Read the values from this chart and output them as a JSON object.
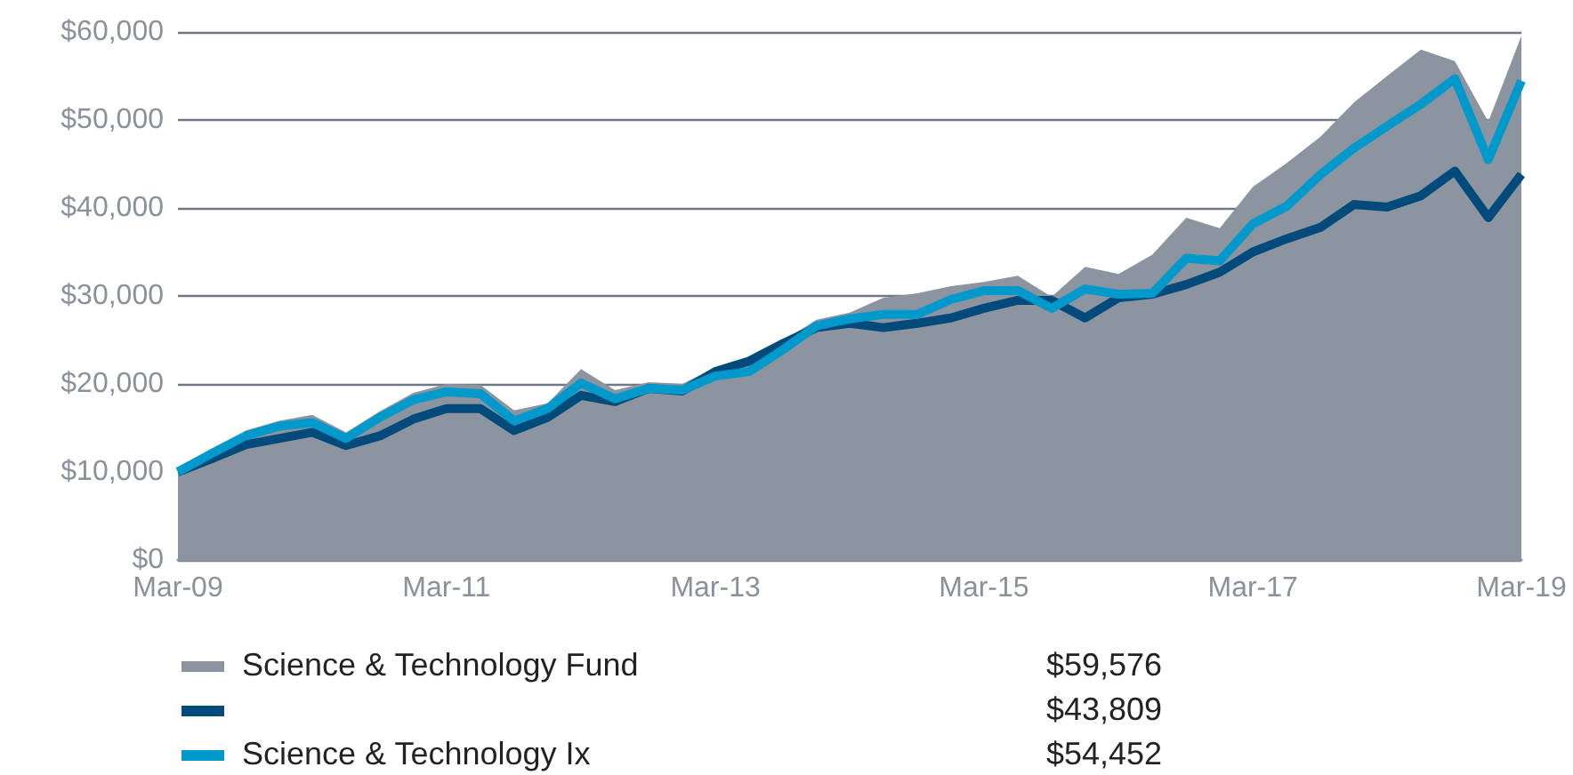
{
  "chart_data": {
    "type": "line",
    "x": [
      "2009-03",
      "2009-06",
      "2009-09",
      "2009-12",
      "2010-03",
      "2010-06",
      "2010-09",
      "2010-12",
      "2011-03",
      "2011-06",
      "2011-09",
      "2011-12",
      "2012-03",
      "2012-06",
      "2012-09",
      "2012-12",
      "2013-03",
      "2013-06",
      "2013-09",
      "2013-12",
      "2014-03",
      "2014-06",
      "2014-09",
      "2014-12",
      "2015-03",
      "2015-06",
      "2015-09",
      "2015-12",
      "2016-03",
      "2016-06",
      "2016-09",
      "2016-12",
      "2017-03",
      "2017-06",
      "2017-09",
      "2017-12",
      "2018-03",
      "2018-06",
      "2018-09",
      "2018-12",
      "2019-03"
    ],
    "series": [
      {
        "name": "Science & Technology Fund",
        "type": "area",
        "color": "#8b949f",
        "values": [
          10000,
          12000,
          14700,
          15800,
          16500,
          14500,
          16900,
          19000,
          20000,
          19900,
          17000,
          17800,
          21700,
          19300,
          20200,
          20000,
          21900,
          22600,
          24900,
          27300,
          28100,
          29800,
          30300,
          31100,
          31600,
          32300,
          29900,
          33300,
          32500,
          34700,
          38900,
          37700,
          42400,
          45100,
          48100,
          52000,
          55000,
          58000,
          56700,
          49800,
          59576
        ]
      },
      {
        "color": "#004a7c",
        "values": [
          10000,
          11500,
          13100,
          13800,
          14500,
          13000,
          14100,
          16000,
          17200,
          17200,
          14700,
          16200,
          18700,
          18000,
          19500,
          19200,
          21400,
          22600,
          24600,
          26400,
          26900,
          26400,
          26900,
          27500,
          28600,
          29500,
          29500,
          27500,
          29800,
          30200,
          31300,
          32700,
          35000,
          36500,
          37800,
          40400,
          40100,
          41400,
          44200,
          38900,
          43809
        ]
      },
      {
        "name": "Science & Technology Ix",
        "color": "#0099cc",
        "values": [
          10000,
          12100,
          14100,
          15200,
          15600,
          13800,
          16200,
          18200,
          19100,
          18900,
          15800,
          17200,
          20100,
          18300,
          19500,
          19300,
          20900,
          21400,
          23900,
          26600,
          27400,
          27900,
          27900,
          29600,
          30600,
          30600,
          28600,
          30800,
          30200,
          30300,
          34300,
          34000,
          38200,
          40200,
          43800,
          46800,
          49300,
          51800,
          54700,
          45500,
          54452
        ]
      }
    ],
    "annotations": [
      "$59,576",
      "$43,809",
      "$54,452"
    ],
    "xlim": [
      "2009-03",
      "2019-03"
    ],
    "xticks": [
      {
        "value": "2009-03",
        "label": "Mar-09"
      },
      {
        "value": "2011-03",
        "label": "Mar-11"
      },
      {
        "value": "2013-03",
        "label": "Mar-13"
      },
      {
        "value": "2015-03",
        "label": "Mar-15"
      },
      {
        "value": "2017-03",
        "label": "Mar-17"
      },
      {
        "value": "2019-03",
        "label": "Mar-19"
      }
    ],
    "ylim": [
      0,
      60000
    ],
    "yticks": [
      {
        "value": 0,
        "label": "$0"
      },
      {
        "value": 10000,
        "label": "$10,000"
      },
      {
        "value": 20000,
        "label": "$20,000"
      },
      {
        "value": 30000,
        "label": "$30,000"
      },
      {
        "value": 40000,
        "label": "$40,000"
      },
      {
        "value": 50000,
        "label": "$50,000"
      },
      {
        "value": 60000,
        "label": "$60,000"
      }
    ],
    "grid": "y",
    "legend": "bottom",
    "marker": "none",
    "line_style": "solid"
  }
}
